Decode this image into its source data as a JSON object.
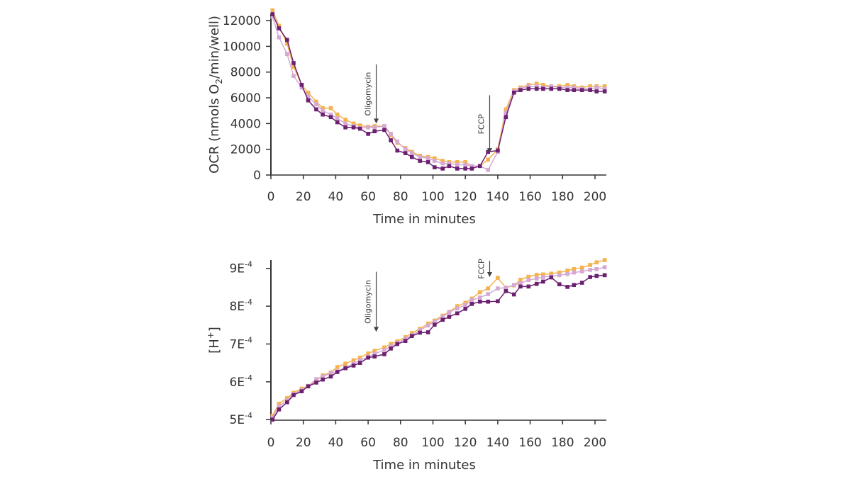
{
  "colors": {
    "series_dark": "#6b2070",
    "series_light": "#d4a9d4",
    "series_orange": "#f5b24e",
    "axis": "#333333",
    "annotation_arrow": "#444444"
  },
  "chart_data": [
    {
      "type": "line",
      "xlabel": "Time in minutes",
      "ylabel": "OCR (nmols O2/min/well)",
      "ylabel_parts": {
        "pre": "OCR (nmols O",
        "sub": "2",
        "post": "/min/well)"
      },
      "xlim": [
        0,
        207
      ],
      "ylim": [
        0,
        12500
      ],
      "xticks": [
        0,
        20,
        40,
        60,
        80,
        100,
        120,
        140,
        160,
        180,
        200
      ],
      "xtick_labels": [
        "0",
        "20",
        "40",
        "60",
        "80",
        "100",
        "120",
        "140",
        "160",
        "180",
        "200"
      ],
      "yticks": [
        0,
        2000,
        4000,
        6000,
        8000,
        10000,
        12000
      ],
      "ytick_labels": [
        "0",
        "2000",
        "4000",
        "6000",
        "8000",
        "10000",
        "12000"
      ],
      "grid": false,
      "annotations": [
        {
          "label": "Oligomycin",
          "x": 65,
          "y_top": 8600,
          "y_tip": 4000
        },
        {
          "label": "FCCP",
          "x": 135,
          "y_top": 6200,
          "y_tip": 1700
        }
      ],
      "series": [
        {
          "color": "#f5b24e",
          "x": [
            1,
            5,
            10,
            14,
            19,
            23,
            28,
            32,
            37,
            41,
            46,
            51,
            55,
            60,
            64,
            70,
            74,
            78,
            83,
            87,
            92,
            97,
            101,
            106,
            110,
            115,
            120,
            124,
            129,
            134,
            140,
            145,
            150,
            154,
            159,
            164,
            168,
            173,
            178,
            183,
            187,
            192,
            197,
            201,
            206
          ],
          "y": [
            12800,
            11600,
            10200,
            8400,
            7000,
            6400,
            5700,
            5200,
            5200,
            4700,
            4300,
            4000,
            3850,
            3750,
            3800,
            3800,
            3100,
            2500,
            2100,
            1800,
            1500,
            1400,
            1300,
            1100,
            1000,
            1000,
            1000,
            700,
            700,
            1200,
            2000,
            5100,
            6600,
            6800,
            7000,
            7100,
            7000,
            6900,
            6900,
            7000,
            6900,
            6800,
            6900,
            6900,
            6900
          ]
        },
        {
          "color": "#d4a9d4",
          "x": [
            1,
            5,
            10,
            14,
            19,
            23,
            28,
            32,
            37,
            41,
            46,
            51,
            55,
            60,
            64,
            70,
            74,
            78,
            83,
            87,
            92,
            97,
            101,
            106,
            110,
            115,
            120,
            124,
            129,
            134,
            140,
            145,
            150,
            154,
            159,
            164,
            168,
            173,
            178,
            183,
            187,
            192,
            197,
            201,
            206
          ],
          "y": [
            12300,
            10700,
            9400,
            7700,
            6800,
            6100,
            5500,
            5000,
            4700,
            4400,
            4000,
            3800,
            3650,
            3700,
            3700,
            3800,
            3200,
            2600,
            2000,
            1700,
            1400,
            1300,
            1100,
            900,
            900,
            800,
            800,
            700,
            700,
            400,
            1800,
            4800,
            6500,
            6700,
            6900,
            6900,
            6800,
            6900,
            6800,
            6800,
            6800,
            6700,
            6700,
            6800,
            6700
          ]
        },
        {
          "color": "#6b2070",
          "x": [
            1,
            5,
            10,
            14,
            19,
            23,
            28,
            32,
            37,
            41,
            46,
            51,
            55,
            60,
            64,
            70,
            74,
            78,
            83,
            87,
            92,
            97,
            101,
            106,
            110,
            115,
            120,
            124,
            129,
            134,
            140,
            145,
            150,
            154,
            159,
            164,
            168,
            173,
            178,
            183,
            187,
            192,
            197,
            201,
            206
          ],
          "y": [
            12500,
            11400,
            10500,
            8700,
            7000,
            5800,
            5100,
            4700,
            4500,
            4100,
            3700,
            3700,
            3600,
            3200,
            3400,
            3500,
            2700,
            1900,
            1700,
            1400,
            1100,
            1000,
            600,
            500,
            700,
            500,
            500,
            500,
            700,
            1800,
            1900,
            4500,
            6400,
            6600,
            6700,
            6700,
            6700,
            6700,
            6700,
            6600,
            6600,
            6600,
            6600,
            6500,
            6500
          ]
        }
      ]
    },
    {
      "type": "line",
      "xlabel": "Time in minutes",
      "ylabel": "[H+]",
      "ylabel_parts": {
        "pre": "[H",
        "sup": "+",
        "post": "]"
      },
      "xlim": [
        0,
        207
      ],
      "ylim": [
        0.0004985,
        0.000922
      ],
      "xticks": [
        0,
        20,
        40,
        60,
        80,
        100,
        120,
        140,
        160,
        180,
        200
      ],
      "xtick_labels": [
        "0",
        "20",
        "40",
        "60",
        "80",
        "100",
        "120",
        "140",
        "160",
        "180",
        "200"
      ],
      "yticks": [
        0.0005,
        0.0006,
        0.0007,
        0.0008,
        0.0009
      ],
      "ytick_labels": [
        {
          "mant": "5E",
          "exp": "-4"
        },
        {
          "mant": "6E",
          "exp": "-4"
        },
        {
          "mant": "7E",
          "exp": "-4"
        },
        {
          "mant": "8E",
          "exp": "-4"
        },
        {
          "mant": "9E",
          "exp": "-4"
        }
      ],
      "grid": false,
      "annotations": [
        {
          "label": "Oligomycin",
          "x": 65,
          "y_top": 0.000891,
          "y_tip": 0.000732
        },
        {
          "label": "FCCP",
          "x": 135,
          "y_top": 0.00092,
          "y_tip": 0.000877
        }
      ],
      "series": [
        {
          "color": "#f5b24e",
          "x": [
            1,
            5,
            10,
            14,
            19,
            23,
            28,
            32,
            37,
            41,
            46,
            51,
            55,
            60,
            64,
            70,
            74,
            78,
            83,
            87,
            92,
            97,
            101,
            106,
            110,
            115,
            120,
            124,
            129,
            134,
            140,
            145,
            150,
            154,
            159,
            164,
            168,
            173,
            178,
            183,
            187,
            192,
            197,
            201,
            206
          ],
          "y": [
            0.00051,
            0.000542,
            0.000557,
            0.000571,
            0.000582,
            0.000589,
            0.000603,
            0.000617,
            0.000625,
            0.000639,
            0.000648,
            0.000657,
            0.000664,
            0.000675,
            0.000682,
            0.000691,
            0.0007,
            0.000707,
            0.000718,
            0.000729,
            0.00074,
            0.000754,
            0.000762,
            0.000775,
            0.000785,
            0.0008,
            0.000809,
            0.00082,
            0.000837,
            0.000847,
            0.000875,
            0.000849,
            0.000855,
            0.00087,
            0.000878,
            0.000883,
            0.000884,
            0.000886,
            0.000889,
            0.000894,
            0.000898,
            0.000902,
            0.000909,
            0.000916,
            0.000922
          ]
        },
        {
          "color": "#d4a9d4",
          "x": [
            1,
            5,
            10,
            14,
            19,
            23,
            28,
            32,
            37,
            41,
            46,
            51,
            55,
            60,
            64,
            70,
            74,
            78,
            83,
            87,
            92,
            97,
            101,
            106,
            110,
            115,
            120,
            124,
            129,
            134,
            140,
            145,
            150,
            154,
            159,
            164,
            168,
            173,
            178,
            183,
            187,
            192,
            197,
            201,
            206
          ],
          "y": [
            0.000505,
            0.000535,
            0.000551,
            0.000568,
            0.000578,
            0.000589,
            0.000607,
            0.000614,
            0.000623,
            0.000628,
            0.000638,
            0.000648,
            0.000657,
            0.000666,
            0.000674,
            0.000684,
            0.000694,
            0.000703,
            0.000714,
            0.000723,
            0.000736,
            0.000749,
            0.000759,
            0.000772,
            0.000784,
            0.000794,
            0.000803,
            0.000816,
            0.000823,
            0.000832,
            0.000847,
            0.000849,
            0.000856,
            0.000861,
            0.000869,
            0.000873,
            0.000877,
            0.000879,
            0.000882,
            0.000885,
            0.000889,
            0.000892,
            0.000896,
            0.000898,
            0.000903
          ]
        },
        {
          "color": "#6b2070",
          "x": [
            1,
            5,
            10,
            14,
            19,
            23,
            28,
            32,
            37,
            41,
            46,
            51,
            55,
            60,
            64,
            70,
            74,
            78,
            83,
            87,
            92,
            97,
            101,
            106,
            110,
            115,
            120,
            124,
            129,
            134,
            140,
            145,
            150,
            154,
            159,
            164,
            168,
            173,
            178,
            183,
            187,
            192,
            197,
            201,
            206
          ],
          "y": [
            0.0005,
            0.000527,
            0.000546,
            0.000565,
            0.000575,
            0.000588,
            0.000598,
            0.000606,
            0.000614,
            0.000626,
            0.000636,
            0.000643,
            0.00065,
            0.000664,
            0.000667,
            0.000673,
            0.000688,
            0.0007,
            0.000708,
            0.000721,
            0.00073,
            0.000731,
            0.000751,
            0.000764,
            0.000772,
            0.000781,
            0.000793,
            0.000806,
            0.000812,
            0.000812,
            0.000813,
            0.00084,
            0.000831,
            0.000852,
            0.000852,
            0.000859,
            0.000865,
            0.000876,
            0.000858,
            0.000851,
            0.000856,
            0.000862,
            0.000877,
            0.00088,
            0.000882
          ]
        }
      ]
    }
  ]
}
